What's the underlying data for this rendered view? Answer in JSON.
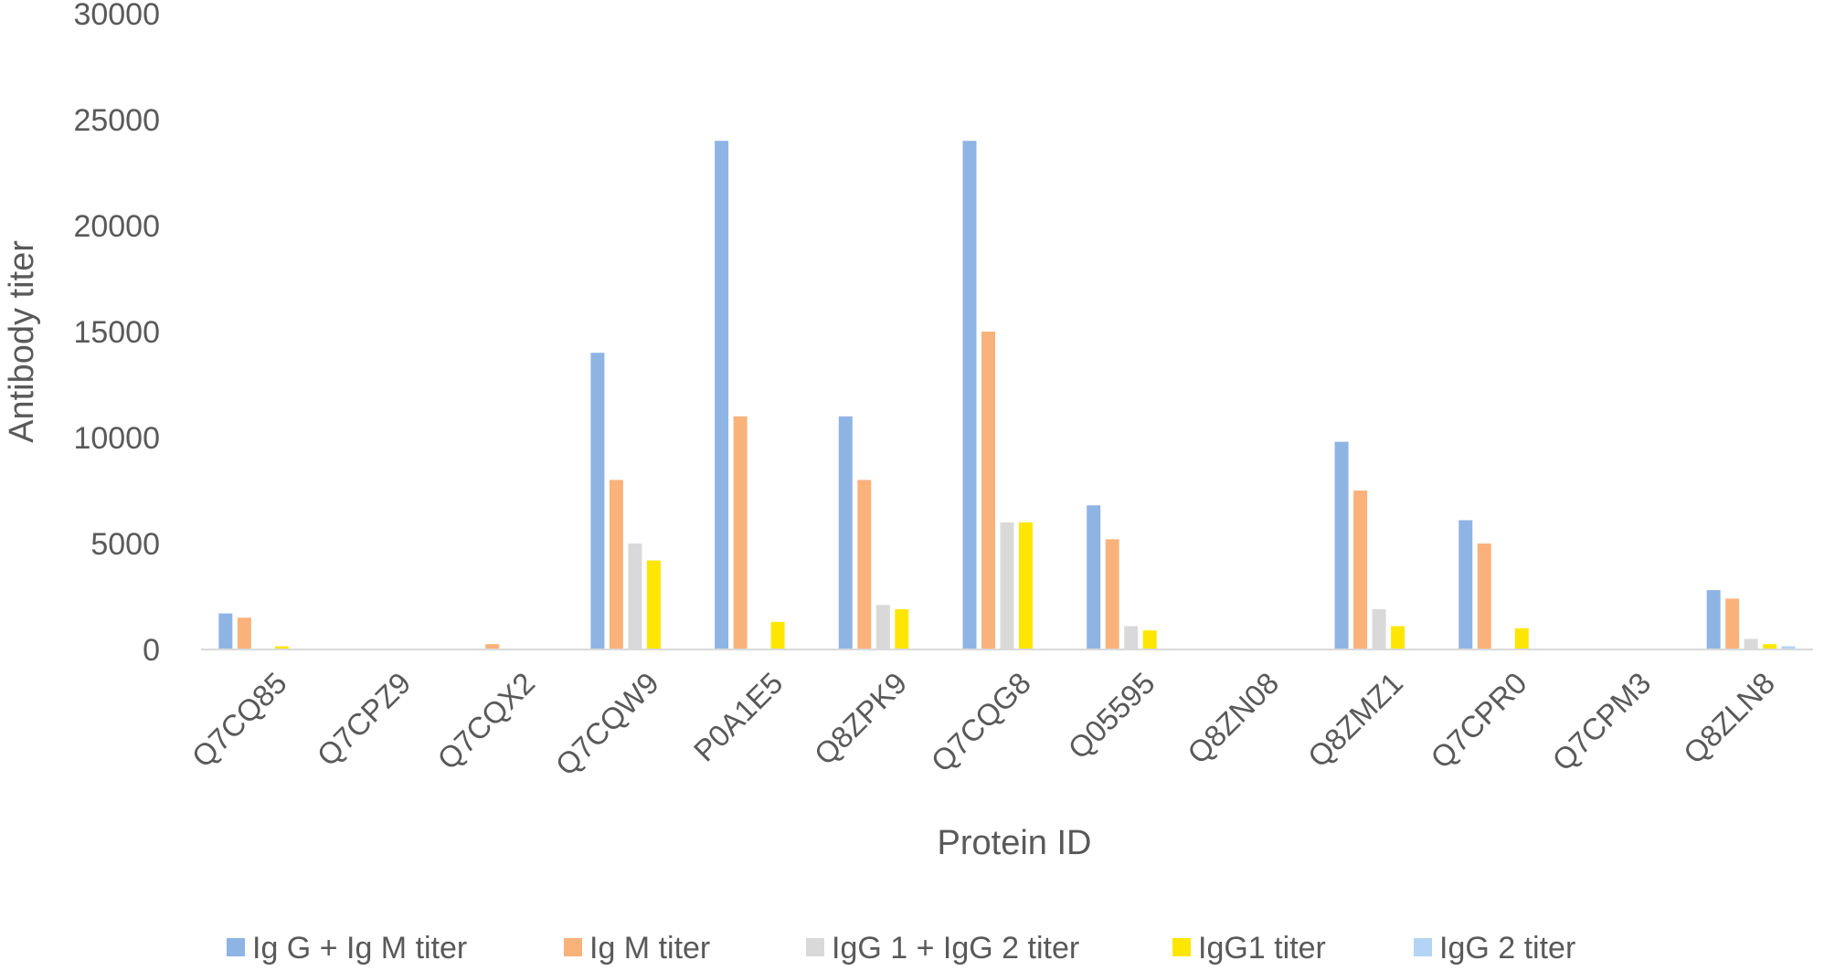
{
  "chart_data": {
    "type": "bar",
    "title": "",
    "xlabel": "Protein ID",
    "ylabel": "Antibody titer",
    "ylim": [
      0,
      30000
    ],
    "yticks": [
      "0",
      "5000",
      "10000",
      "15000",
      "20000",
      "25000",
      "30000"
    ],
    "grid": false,
    "legend_position": "bottom",
    "categories": [
      "Q7CQ85",
      "Q7CPZ9",
      "Q7CQX2",
      "Q7CQW9",
      "P0A1E5",
      "Q8ZPK9",
      "Q7CQG8",
      "Q05595",
      "Q8ZN08",
      "Q8ZMZ1",
      "Q7CPR0",
      "Q7CPM3",
      "Q8ZLN8"
    ],
    "series": [
      {
        "name": "Ig G + Ig M titer",
        "color": "#8eb4e3",
        "values": [
          1700,
          0,
          0,
          14000,
          24000,
          11000,
          24000,
          6800,
          0,
          9800,
          6100,
          0,
          2800
        ]
      },
      {
        "name": "Ig M titer",
        "color": "#fab27b",
        "values": [
          1500,
          0,
          250,
          8000,
          11000,
          8000,
          15000,
          5200,
          0,
          7500,
          5000,
          0,
          2400
        ]
      },
      {
        "name": "IgG 1 + IgG 2 titer",
        "color": "#d9d9d9",
        "values": [
          0,
          0,
          0,
          5000,
          0,
          2100,
          6000,
          1100,
          0,
          1900,
          0,
          0,
          500
        ]
      },
      {
        "name": "IgG1 titer",
        "color": "#ffe600",
        "values": [
          150,
          0,
          0,
          4200,
          1300,
          1900,
          6000,
          900,
          0,
          1100,
          1000,
          0,
          250
        ]
      },
      {
        "name": "IgG 2 titer",
        "color": "#b4d4f5",
        "values": [
          0,
          0,
          0,
          0,
          0,
          0,
          0,
          0,
          0,
          0,
          0,
          0,
          150
        ]
      }
    ]
  }
}
